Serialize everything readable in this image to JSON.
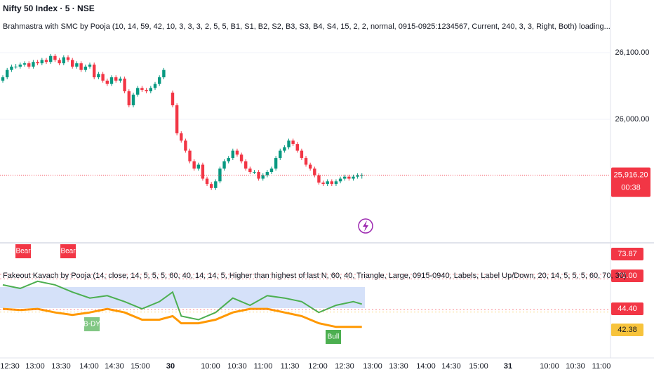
{
  "chart_data": [
    {
      "type": "candlestick",
      "title": "Nifty 50 Index · 5 · NSE",
      "subtitle": "Brahmastra with SMC by Pooja (10, 14, 59, 42, 10, 3, 3, 3, 2, 5, 5, B1, S1, B2, S2, B3, S3, B4, S4, 15, 2, 2, normal, 0915-0925:1234567, Current, 240, 3, 3, Right, Both) loading...",
      "ylim": [
        25815.8,
        26178.9
      ],
      "yticks": [
        {
          "value": 26100,
          "label": "26,100.00"
        },
        {
          "value": 26000,
          "label": "26,000.00"
        }
      ],
      "last_price": {
        "value": 25916.2,
        "label": "25,916.20"
      },
      "countdown": "00:38",
      "up_color": "#089981",
      "down_color": "#f23645",
      "time_axis": [
        "12:30",
        "13:00",
        "13:30",
        "14:00",
        "14:30",
        "15:00",
        "30",
        "10:00",
        "10:30",
        "11:00",
        "11:30",
        "12:00",
        "12:30",
        "13:00",
        "13:30",
        "14:00",
        "14:30",
        "15:00",
        "31",
        "10:00",
        "10:30",
        "11:00"
      ],
      "candles": [
        [
          26058,
          26066,
          26055,
          26063
        ],
        [
          26063,
          26077,
          26060,
          26074
        ],
        [
          26074,
          26082,
          26071,
          26079
        ],
        [
          26079,
          26083,
          26076,
          26079
        ],
        [
          26079,
          26085,
          26076,
          26082
        ],
        [
          26082,
          26087,
          26079,
          26084
        ],
        [
          26084,
          26087,
          26076,
          26079
        ],
        [
          26079,
          26089,
          26076,
          26086
        ],
        [
          26086,
          26089,
          26081,
          26084
        ],
        [
          26084,
          26092,
          26081,
          26089
        ],
        [
          26089,
          26092,
          26083,
          26086
        ],
        [
          26086,
          26098,
          26083,
          26095
        ],
        [
          26095,
          26098,
          26086,
          26089
        ],
        [
          26089,
          26092,
          26081,
          26084
        ],
        [
          26084,
          26096,
          26081,
          26093
        ],
        [
          26093,
          26096,
          26086,
          26089
        ],
        [
          26089,
          26092,
          26076,
          26079
        ],
        [
          26079,
          26087,
          26076,
          26084
        ],
        [
          26084,
          26087,
          26071,
          26074
        ],
        [
          26074,
          26082,
          26071,
          26079
        ],
        [
          26079,
          26085,
          26076,
          26082
        ],
        [
          26082,
          26085,
          26060,
          26063
        ],
        [
          26063,
          26071,
          26060,
          26068
        ],
        [
          26068,
          26071,
          26055,
          26058
        ],
        [
          26058,
          26061,
          26050,
          26053
        ],
        [
          26053,
          26066,
          26050,
          26063
        ],
        [
          26063,
          26066,
          26055,
          26058
        ],
        [
          26058,
          26064,
          26055,
          26061
        ],
        [
          26061,
          26064,
          26039,
          26042
        ],
        [
          26042,
          26045,
          26018,
          26021
        ],
        [
          26021,
          26040,
          26018,
          26037
        ],
        [
          26037,
          26050,
          26034,
          26047
        ],
        [
          26047,
          26050,
          26041,
          26044
        ],
        [
          26044,
          26047,
          26039,
          26042
        ],
        [
          26042,
          26050,
          26039,
          26047
        ],
        [
          26047,
          26056,
          26044,
          26053
        ],
        [
          26053,
          26066,
          26050,
          26063
        ],
        [
          26063,
          26077,
          26060,
          26074
        ],
        [
          26040,
          26043,
          26018,
          26021
        ],
        [
          26021,
          26024,
          25976,
          25979
        ],
        [
          25979,
          25982,
          25965,
          25968
        ],
        [
          25968,
          25971,
          25950,
          25953
        ],
        [
          25953,
          25956,
          25934,
          25937
        ],
        [
          25937,
          25940,
          25923,
          25926
        ],
        [
          25926,
          25935,
          25923,
          25932
        ],
        [
          25932,
          25935,
          25908,
          25911
        ],
        [
          25911,
          25914,
          25900,
          25903
        ],
        [
          25903,
          25906,
          25894,
          25897
        ],
        [
          25897,
          25910,
          25894,
          25907
        ],
        [
          25907,
          25929,
          25904,
          25926
        ],
        [
          25926,
          25940,
          25923,
          25937
        ],
        [
          25937,
          25945,
          25934,
          25942
        ],
        [
          25942,
          25956,
          25939,
          25953
        ],
        [
          25953,
          25956,
          25944,
          25947
        ],
        [
          25947,
          25950,
          25934,
          25937
        ],
        [
          25937,
          25940,
          25923,
          25926
        ],
        [
          25926,
          25929,
          25918,
          25921
        ],
        [
          25921,
          25924,
          25918,
          25921
        ],
        [
          25921,
          25924,
          25908,
          25911
        ],
        [
          25911,
          25919,
          25908,
          25916
        ],
        [
          25916,
          25924,
          25913,
          25921
        ],
        [
          25921,
          25929,
          25918,
          25926
        ],
        [
          25926,
          25945,
          25923,
          25942
        ],
        [
          25942,
          25956,
          25939,
          25953
        ],
        [
          25953,
          25961,
          25950,
          25958
        ],
        [
          25958,
          25971,
          25955,
          25968
        ],
        [
          25968,
          25971,
          25960,
          25963
        ],
        [
          25963,
          25966,
          25950,
          25953
        ],
        [
          25953,
          25956,
          25939,
          25942
        ],
        [
          25942,
          25945,
          25929,
          25932
        ],
        [
          25932,
          25935,
          25923,
          25926
        ],
        [
          25926,
          25929,
          25913,
          25916
        ],
        [
          25916,
          25919,
          25902,
          25905
        ],
        [
          25905,
          25908,
          25900,
          25903
        ],
        [
          25903,
          25910,
          25900,
          25907
        ],
        [
          25907,
          25910,
          25900,
          25903
        ],
        [
          25903,
          25910,
          25900,
          25907
        ],
        [
          25907,
          25914,
          25904,
          25911
        ],
        [
          25911,
          25917,
          25908,
          25914
        ],
        [
          25914,
          25917,
          25908,
          25911
        ],
        [
          25911,
          25917,
          25908,
          25914
        ],
        [
          25914,
          25919,
          25911,
          25916
        ],
        [
          25916,
          25919,
          25911,
          25916.2
        ]
      ]
    },
    {
      "type": "line",
      "title": "Fakeout Kavach by Pooja (14, close, 14, 5, 5, 5, 60, 40, 14, 14, 5, Higher than highest of last N, 60, 40, Triangle, Large, 0915-0940, Labels, Label Up/Down, 20, 14, 5, 5, 5, 60, 70, 30)",
      "ylim": [
        10,
        100
      ],
      "x": [
        0,
        4,
        8,
        12,
        16,
        20,
        24,
        28,
        32,
        36,
        38,
        40,
        44,
        48,
        52,
        56,
        60,
        64,
        68,
        72,
        76,
        80,
        82
      ],
      "series": [
        {
          "color": "#4caf50",
          "values": [
            65,
            62,
            68,
            65,
            59,
            54,
            56,
            51,
            45,
            51,
            59,
            39,
            36,
            42,
            54,
            48,
            56,
            54,
            51,
            42,
            48,
            51,
            49
          ]
        },
        {
          "color": "#ff9800",
          "values": [
            45,
            44,
            45,
            42,
            40,
            42,
            45,
            42,
            36,
            36,
            39,
            33,
            33,
            36,
            42,
            45,
            45,
            42,
            39,
            33,
            30,
            30,
            30
          ]
        }
      ],
      "value_tags": [
        {
          "value": 73.87,
          "label": "73.87",
          "color": "#f23645"
        },
        {
          "value": 70,
          "label": "70.00",
          "color": "#f23645"
        },
        {
          "value": 44.4,
          "label": "44.40",
          "color": "#f23645"
        },
        {
          "value": 42.38,
          "label": "42.38",
          "color": "#f7c33c"
        }
      ],
      "annotations": [
        "Bear",
        "Bear",
        "B-DY",
        "Bull"
      ]
    }
  ]
}
